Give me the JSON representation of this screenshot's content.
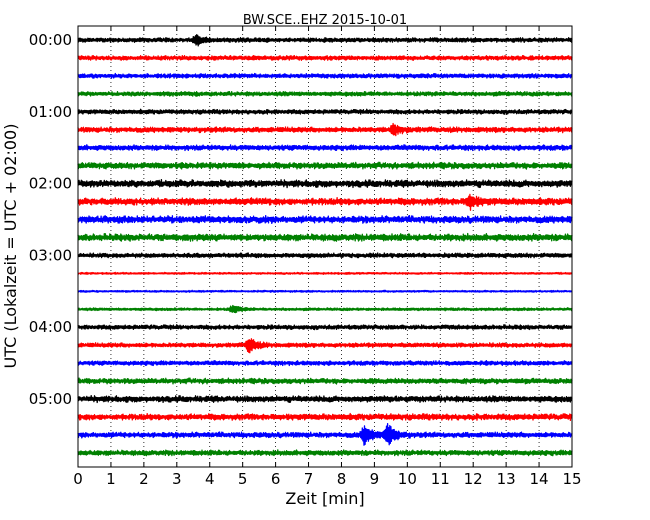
{
  "chart_data": {
    "type": "line",
    "title": "BW.SCE..EHZ 2015-10-01",
    "xlabel": "Zeit  [min]",
    "ylabel": "UTC (Lokalzeit = UTC + 02:00)",
    "xlim": [
      0,
      15
    ],
    "x_ticks": [
      "0",
      "1",
      "2",
      "3",
      "4",
      "5",
      "6",
      "7",
      "8",
      "9",
      "10",
      "11",
      "12",
      "13",
      "14",
      "15"
    ],
    "y_ticks": [
      "00:00",
      "01:00",
      "02:00",
      "03:00",
      "04:00",
      "05:00"
    ],
    "grid_x": "dotted",
    "color_cycle": [
      "#000000",
      "#ff0000",
      "#0000ff",
      "#008000"
    ],
    "trace_minutes": 15,
    "traces_per_hour": 4,
    "traces": [
      {
        "start": "00:00",
        "amplitude": 2.5,
        "events": [
          {
            "minute": 3.6,
            "amp": 4.5
          }
        ]
      },
      {
        "start": "00:15",
        "amplitude": 2.5,
        "events": []
      },
      {
        "start": "00:30",
        "amplitude": 2.5,
        "events": []
      },
      {
        "start": "00:45",
        "amplitude": 2.5,
        "events": []
      },
      {
        "start": "01:00",
        "amplitude": 2.5,
        "events": []
      },
      {
        "start": "01:15",
        "amplitude": 3,
        "events": [
          {
            "minute": 9.6,
            "amp": 5
          }
        ]
      },
      {
        "start": "01:30",
        "amplitude": 3,
        "events": []
      },
      {
        "start": "01:45",
        "amplitude": 3.5,
        "events": []
      },
      {
        "start": "02:00",
        "amplitude": 4,
        "events": []
      },
      {
        "start": "02:15",
        "amplitude": 4,
        "events": [
          {
            "minute": 11.9,
            "amp": 6
          }
        ]
      },
      {
        "start": "02:30",
        "amplitude": 4,
        "events": []
      },
      {
        "start": "02:45",
        "amplitude": 4,
        "events": []
      },
      {
        "start": "03:00",
        "amplitude": 2.5,
        "events": []
      },
      {
        "start": "03:15",
        "amplitude": 1,
        "events": []
      },
      {
        "start": "03:30",
        "amplitude": 1,
        "events": []
      },
      {
        "start": "03:45",
        "amplitude": 1.5,
        "events": [
          {
            "minute": 4.7,
            "amp": 4
          }
        ]
      },
      {
        "start": "04:00",
        "amplitude": 2.5,
        "events": []
      },
      {
        "start": "04:15",
        "amplitude": 2.5,
        "events": [
          {
            "minute": 5.2,
            "amp": 7
          }
        ]
      },
      {
        "start": "04:30",
        "amplitude": 2.5,
        "events": []
      },
      {
        "start": "04:45",
        "amplitude": 3,
        "events": []
      },
      {
        "start": "05:00",
        "amplitude": 3.5,
        "events": []
      },
      {
        "start": "05:15",
        "amplitude": 3.5,
        "events": []
      },
      {
        "start": "05:30",
        "amplitude": 3,
        "events": [
          {
            "minute": 8.7,
            "amp": 9
          },
          {
            "minute": 9.4,
            "amp": 11
          }
        ]
      },
      {
        "start": "05:45",
        "amplitude": 3,
        "events": []
      }
    ]
  }
}
